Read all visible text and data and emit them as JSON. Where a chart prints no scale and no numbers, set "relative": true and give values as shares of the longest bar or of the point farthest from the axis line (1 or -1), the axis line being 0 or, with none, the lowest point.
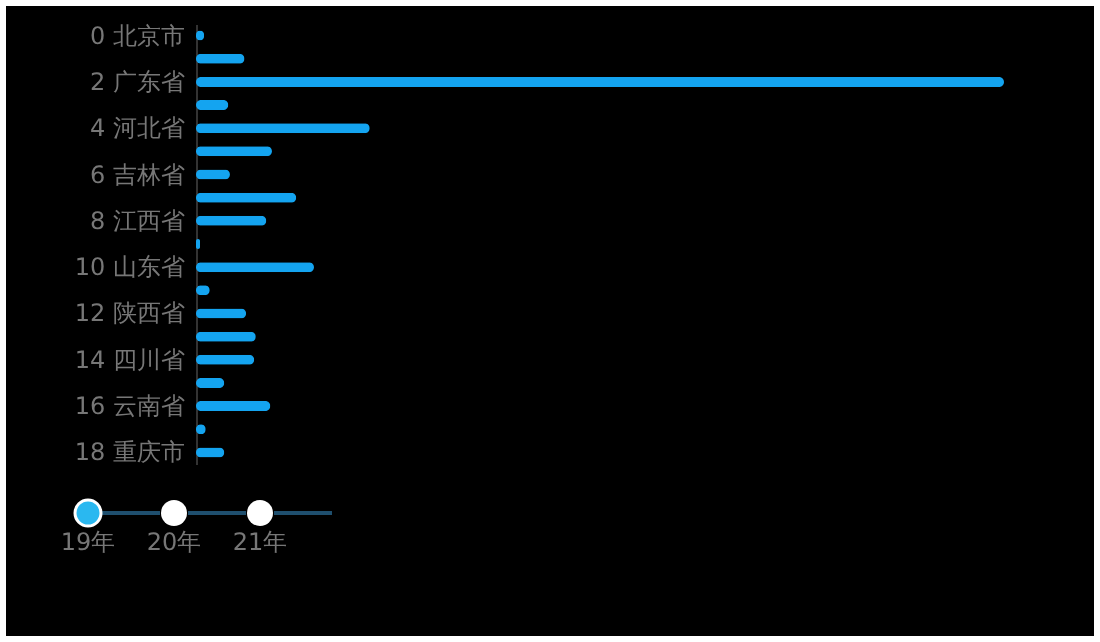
{
  "chart_data": {
    "type": "bar",
    "orientation": "horizontal",
    "relative": true,
    "categories": [
      "0 北京市",
      null,
      "2 广东省",
      null,
      "4 河北省",
      null,
      "6 吉林省",
      null,
      "8 江西省",
      null,
      "10 山东省",
      null,
      "12 陕西省",
      null,
      "14 四川省",
      null,
      "16 云南省",
      null,
      "18 重庆市"
    ],
    "series": [
      {
        "color": "#14a4f0",
        "values": [
          0.01,
          0.06,
          1,
          0.04,
          0.215,
          0.094,
          0.042,
          0.124,
          0.087,
          0.005,
          0.146,
          0.017,
          0.062,
          0.074,
          0.072,
          0.035,
          0.092,
          0.012,
          0.035
        ]
      }
    ],
    "annotations": [
      "19年",
      "20年",
      "21年"
    ]
  }
}
